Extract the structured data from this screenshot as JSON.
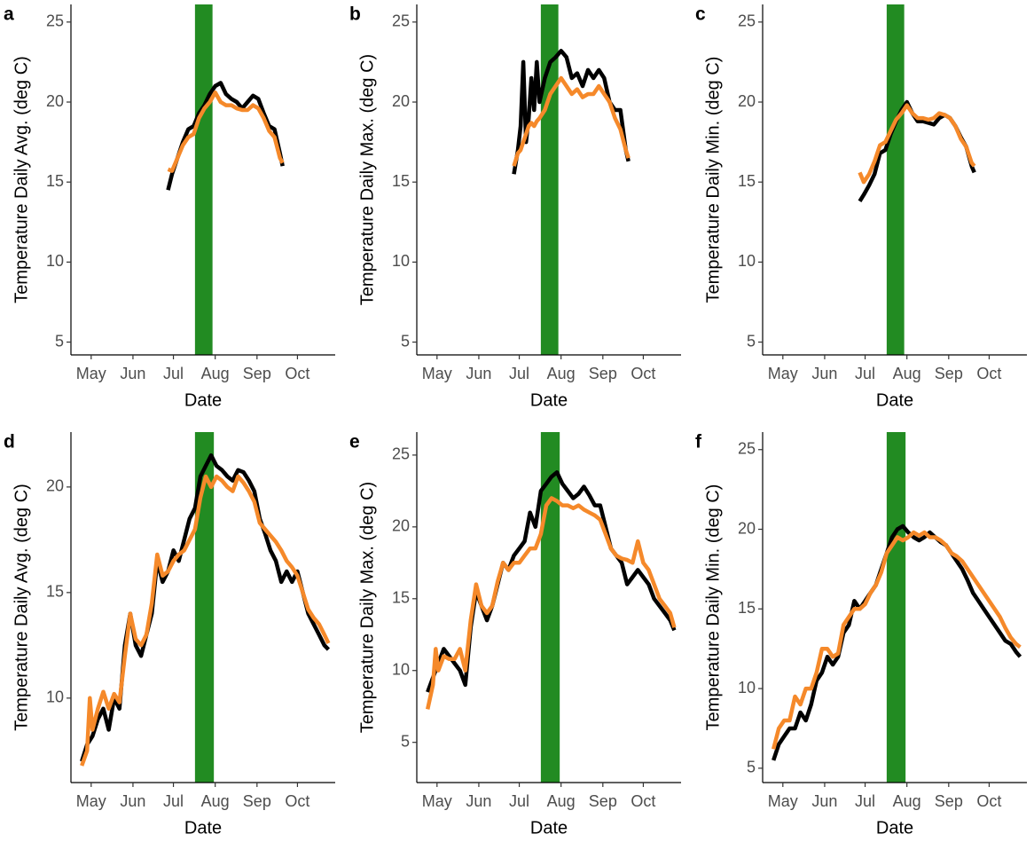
{
  "chart_data": [
    {
      "type": "line",
      "label": "a",
      "xlabel": "Date",
      "ylabel": "Temperature Daily Avg. (deg C)",
      "xlim": [
        106,
        302
      ],
      "xticks": [
        {
          "value": 121,
          "label": "May"
        },
        {
          "value": 152,
          "label": "Jun"
        },
        {
          "value": 182,
          "label": "Jul"
        },
        {
          "value": 213,
          "label": "Aug"
        },
        {
          "value": 244,
          "label": "Sep"
        },
        {
          "value": 274,
          "label": "Oct"
        }
      ],
      "ylim": [
        4.2,
        26.1
      ],
      "yticks": [
        5,
        10,
        15,
        20,
        25
      ],
      "shade": {
        "xlim": [
          198,
          211
        ],
        "color": "#228b22"
      },
      "x": [
        178,
        181,
        185,
        189,
        193,
        197,
        201,
        205,
        209,
        213,
        217,
        221,
        225,
        229,
        233,
        237,
        241,
        245,
        249,
        253,
        257,
        261,
        263
      ],
      "series": [
        {
          "color": "#000000",
          "values": [
            14.5,
            15.5,
            16.5,
            17.5,
            18.3,
            18.5,
            19.3,
            19.8,
            20.5,
            21.0,
            21.2,
            20.5,
            20.2,
            20.0,
            19.6,
            20.0,
            20.4,
            20.2,
            19.3,
            18.5,
            18.3,
            16.8,
            16.0
          ]
        },
        {
          "color": "#f5892a",
          "values": [
            15.8,
            15.7,
            16.5,
            17.3,
            17.8,
            18.0,
            19.0,
            19.6,
            20.0,
            20.6,
            20.0,
            19.8,
            19.8,
            19.6,
            19.5,
            19.5,
            19.8,
            19.6,
            19.0,
            18.2,
            17.8,
            16.5,
            16.2
          ]
        }
      ]
    },
    {
      "type": "line",
      "label": "b",
      "xlabel": "Date",
      "ylabel": "Temperature Daily Max. (deg C)",
      "xlim": [
        106,
        302
      ],
      "xticks": [
        {
          "value": 121,
          "label": "May"
        },
        {
          "value": 152,
          "label": "Jun"
        },
        {
          "value": 182,
          "label": "Jul"
        },
        {
          "value": 213,
          "label": "Aug"
        },
        {
          "value": 244,
          "label": "Sep"
        },
        {
          "value": 274,
          "label": "Oct"
        }
      ],
      "ylim": [
        4.2,
        26.1
      ],
      "yticks": [
        5,
        10,
        15,
        20,
        25
      ],
      "shade": {
        "xlim": [
          198,
          211
        ],
        "color": "#228b22"
      },
      "x": [
        178,
        181,
        183,
        185,
        187,
        189,
        191,
        193,
        195,
        197,
        201,
        205,
        209,
        213,
        217,
        221,
        225,
        229,
        233,
        237,
        241,
        245,
        249,
        253,
        257,
        261,
        263
      ],
      "series": [
        {
          "color": "#000000",
          "values": [
            15.5,
            17.0,
            18.5,
            22.5,
            17.5,
            19.0,
            21.5,
            19.5,
            22.5,
            20.0,
            21.5,
            22.5,
            22.8,
            23.2,
            22.8,
            21.5,
            21.8,
            21.0,
            22.0,
            21.5,
            22.0,
            21.5,
            20.0,
            19.5,
            19.5,
            17.0,
            16.3
          ]
        },
        {
          "color": "#f5892a",
          "values": [
            16.0,
            16.8,
            17.0,
            17.5,
            18.0,
            18.5,
            18.7,
            18.5,
            18.8,
            19.0,
            19.5,
            20.5,
            21.0,
            21.5,
            21.0,
            20.5,
            20.8,
            20.3,
            20.5,
            20.5,
            21.0,
            20.5,
            20.0,
            19.0,
            18.3,
            17.0,
            16.5
          ]
        }
      ]
    },
    {
      "type": "line",
      "label": "c",
      "xlabel": "Date",
      "ylabel": "Temperature Daily Min. (deg C)",
      "xlim": [
        106,
        302
      ],
      "xticks": [
        {
          "value": 121,
          "label": "May"
        },
        {
          "value": 152,
          "label": "Jun"
        },
        {
          "value": 182,
          "label": "Jul"
        },
        {
          "value": 213,
          "label": "Aug"
        },
        {
          "value": 244,
          "label": "Sep"
        },
        {
          "value": 274,
          "label": "Oct"
        }
      ],
      "ylim": [
        4.2,
        26.1
      ],
      "yticks": [
        5,
        10,
        15,
        20,
        25
      ],
      "shade": {
        "xlim": [
          198,
          211
        ],
        "color": "#228b22"
      },
      "x": [
        178,
        181,
        185,
        189,
        193,
        197,
        201,
        205,
        209,
        213,
        217,
        221,
        225,
        229,
        233,
        237,
        241,
        245,
        249,
        253,
        257,
        261,
        263
      ],
      "series": [
        {
          "color": "#000000",
          "values": [
            13.8,
            14.2,
            14.8,
            15.5,
            16.8,
            17.0,
            18.0,
            18.8,
            19.5,
            20.0,
            19.3,
            18.8,
            18.8,
            18.7,
            18.6,
            19.0,
            19.2,
            19.0,
            18.5,
            17.8,
            17.2,
            16.0,
            15.6
          ]
        },
        {
          "color": "#f5892a",
          "values": [
            15.6,
            15.0,
            15.5,
            16.3,
            17.3,
            17.5,
            18.2,
            18.9,
            19.3,
            19.8,
            19.3,
            19.0,
            19.0,
            18.9,
            19.0,
            19.3,
            19.2,
            19.0,
            18.5,
            17.7,
            17.2,
            16.2,
            16.0
          ]
        }
      ]
    },
    {
      "type": "line",
      "label": "d",
      "xlabel": "Date",
      "ylabel": "Temperature Daily Avg. (deg C)",
      "xlim": [
        106,
        302
      ],
      "xticks": [
        {
          "value": 121,
          "label": "May"
        },
        {
          "value": 152,
          "label": "Jun"
        },
        {
          "value": 182,
          "label": "Jul"
        },
        {
          "value": 213,
          "label": "Aug"
        },
        {
          "value": 244,
          "label": "Sep"
        },
        {
          "value": 274,
          "label": "Oct"
        }
      ],
      "ylim": [
        6.0,
        22.6
      ],
      "yticks": [
        10,
        15,
        20
      ],
      "shade": {
        "xlim": [
          198,
          212
        ],
        "color": "#228b22"
      },
      "x": [
        114,
        118,
        120,
        122,
        126,
        130,
        134,
        138,
        142,
        146,
        150,
        154,
        158,
        162,
        166,
        170,
        174,
        178,
        182,
        186,
        190,
        194,
        198,
        202,
        206,
        210,
        214,
        218,
        222,
        226,
        230,
        234,
        238,
        242,
        246,
        250,
        254,
        258,
        262,
        266,
        270,
        274,
        278,
        282,
        286,
        290,
        294,
        297
      ],
      "series": [
        {
          "color": "#000000",
          "values": [
            7.0,
            7.8,
            8.0,
            8.2,
            9.0,
            9.5,
            8.5,
            10.0,
            9.5,
            12.5,
            14.0,
            12.5,
            12.0,
            13.0,
            14.0,
            16.5,
            15.5,
            16.0,
            17.0,
            16.5,
            17.5,
            18.5,
            19.0,
            20.5,
            21.0,
            21.5,
            21.0,
            20.8,
            20.5,
            20.3,
            20.8,
            20.7,
            20.3,
            19.8,
            18.5,
            17.8,
            17.0,
            16.5,
            15.5,
            16.0,
            15.5,
            16.0,
            15.0,
            14.0,
            13.5,
            13.0,
            12.5,
            12.3
          ]
        },
        {
          "color": "#f5892a",
          "values": [
            6.8,
            7.5,
            10.0,
            8.5,
            9.5,
            10.3,
            9.5,
            10.2,
            9.8,
            12.0,
            14.0,
            12.8,
            12.5,
            13.0,
            14.5,
            16.8,
            15.8,
            16.0,
            16.5,
            16.8,
            17.0,
            17.5,
            18.0,
            19.5,
            20.5,
            20.0,
            20.5,
            20.3,
            20.0,
            19.8,
            20.5,
            20.2,
            19.8,
            19.3,
            18.3,
            18.0,
            17.7,
            17.4,
            17.0,
            16.5,
            16.2,
            15.8,
            15.0,
            14.2,
            13.8,
            13.5,
            13.0,
            12.6
          ]
        }
      ]
    },
    {
      "type": "line",
      "label": "e",
      "xlabel": "Date",
      "ylabel": "Temperature Daily Max. (deg C)",
      "xlim": [
        106,
        302
      ],
      "xticks": [
        {
          "value": 121,
          "label": "May"
        },
        {
          "value": 152,
          "label": "Jun"
        },
        {
          "value": 182,
          "label": "Jul"
        },
        {
          "value": 213,
          "label": "Aug"
        },
        {
          "value": 244,
          "label": "Sep"
        },
        {
          "value": 274,
          "label": "Oct"
        }
      ],
      "ylim": [
        2.2,
        26.6
      ],
      "yticks": [
        5,
        10,
        15,
        20,
        25
      ],
      "shade": {
        "xlim": [
          198,
          212
        ],
        "color": "#228b22"
      },
      "x": [
        114,
        118,
        120,
        122,
        126,
        130,
        134,
        138,
        142,
        146,
        150,
        154,
        158,
        162,
        166,
        170,
        174,
        178,
        182,
        186,
        190,
        194,
        198,
        202,
        206,
        210,
        214,
        218,
        222,
        226,
        230,
        234,
        238,
        242,
        246,
        250,
        254,
        258,
        262,
        266,
        270,
        274,
        278,
        282,
        286,
        290,
        294,
        297
      ],
      "series": [
        {
          "color": "#000000",
          "values": [
            8.5,
            9.5,
            10.0,
            10.5,
            11.5,
            11.0,
            10.5,
            10.0,
            9.0,
            13.0,
            15.5,
            14.5,
            13.5,
            14.5,
            16.0,
            17.5,
            17.0,
            18.0,
            18.5,
            19.0,
            21.0,
            20.0,
            22.5,
            23.0,
            23.5,
            23.8,
            23.0,
            22.5,
            22.0,
            22.3,
            22.8,
            22.2,
            21.5,
            21.5,
            20.0,
            18.5,
            18.0,
            17.5,
            16.0,
            16.5,
            17.0,
            16.5,
            16.0,
            15.0,
            14.5,
            14.0,
            13.5,
            12.8
          ]
        },
        {
          "color": "#f5892a",
          "values": [
            7.3,
            9.0,
            11.5,
            10.0,
            11.0,
            10.8,
            10.8,
            11.5,
            10.0,
            13.5,
            16.0,
            14.5,
            14.0,
            14.5,
            16.2,
            17.5,
            17.0,
            17.5,
            17.5,
            18.0,
            18.5,
            18.5,
            19.5,
            21.5,
            22.0,
            21.8,
            21.5,
            21.5,
            21.3,
            21.5,
            21.2,
            21.0,
            20.8,
            20.5,
            19.5,
            18.5,
            18.0,
            17.8,
            17.7,
            17.5,
            19.0,
            17.5,
            17.0,
            16.0,
            15.0,
            14.5,
            14.0,
            13.0
          ]
        }
      ]
    },
    {
      "type": "line",
      "label": "f",
      "xlabel": "Date",
      "ylabel": "Temperature Daily Min. (deg C)",
      "xlim": [
        106,
        302
      ],
      "xticks": [
        {
          "value": 121,
          "label": "May"
        },
        {
          "value": 152,
          "label": "Jun"
        },
        {
          "value": 182,
          "label": "Jul"
        },
        {
          "value": 213,
          "label": "Aug"
        },
        {
          "value": 244,
          "label": "Sep"
        },
        {
          "value": 274,
          "label": "Oct"
        }
      ],
      "ylim": [
        4.1,
        26.1
      ],
      "yticks": [
        5,
        10,
        15,
        20,
        25
      ],
      "shade": {
        "xlim": [
          198,
          212
        ],
        "color": "#228b22"
      },
      "x": [
        114,
        118,
        122,
        126,
        130,
        134,
        138,
        142,
        146,
        150,
        154,
        158,
        162,
        166,
        170,
        174,
        178,
        182,
        186,
        190,
        194,
        198,
        202,
        206,
        210,
        214,
        218,
        222,
        226,
        230,
        234,
        238,
        242,
        246,
        250,
        254,
        258,
        262,
        266,
        270,
        274,
        278,
        282,
        286,
        290,
        294,
        297
      ],
      "series": [
        {
          "color": "#000000",
          "values": [
            5.5,
            6.5,
            7.0,
            7.5,
            7.5,
            8.5,
            8.0,
            9.0,
            10.5,
            11.0,
            12.0,
            11.5,
            12.0,
            13.5,
            14.0,
            15.5,
            15.0,
            15.5,
            16.0,
            16.5,
            17.5,
            18.5,
            19.5,
            20.0,
            20.2,
            19.8,
            19.5,
            19.3,
            19.5,
            19.8,
            19.5,
            19.2,
            19.0,
            18.5,
            18.0,
            17.5,
            16.8,
            16.0,
            15.5,
            15.0,
            14.5,
            14.0,
            13.5,
            13.0,
            12.8,
            12.3,
            12.0
          ]
        },
        {
          "color": "#f5892a",
          "values": [
            6.2,
            7.5,
            8.0,
            8.0,
            9.5,
            9.0,
            10.0,
            10.0,
            11.0,
            12.5,
            12.5,
            12.0,
            12.2,
            14.0,
            14.5,
            15.0,
            15.0,
            15.3,
            16.0,
            16.5,
            17.3,
            18.5,
            19.0,
            19.5,
            19.3,
            19.5,
            19.8,
            19.6,
            19.8,
            19.5,
            19.5,
            19.3,
            19.0,
            18.5,
            18.3,
            18.0,
            17.5,
            17.0,
            16.5,
            16.0,
            15.5,
            15.0,
            14.5,
            13.8,
            13.2,
            12.8,
            12.6
          ]
        }
      ]
    }
  ]
}
